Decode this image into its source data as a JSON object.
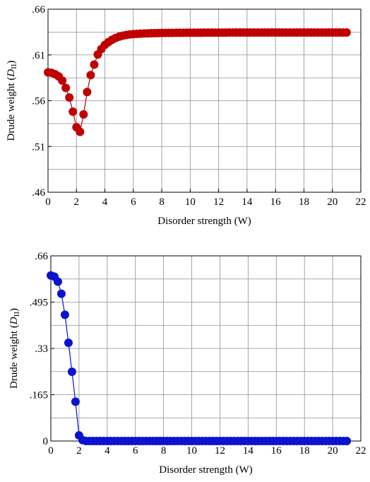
{
  "chart_data": [
    {
      "type": "line",
      "xlabel": "Disorder strength (W)",
      "ylabel_main": "Drude weight (",
      "ylabel_var": "D",
      "ylabel_sub": "II",
      "ylabel_end": ")",
      "xlim": [
        0,
        22
      ],
      "ylim": [
        0.46,
        0.66
      ],
      "xticks": [
        0,
        2,
        4,
        6,
        8,
        10,
        12,
        14,
        16,
        18,
        20,
        22
      ],
      "xtick_labels": [
        "0",
        "2",
        "4",
        "6",
        "8",
        "10",
        "12",
        "14",
        "16",
        "18",
        "20",
        "22"
      ],
      "yticks": [
        0.46,
        0.51,
        0.56,
        0.61,
        0.66
      ],
      "ytick_labels": [
        ".46",
        ".51",
        ".56",
        ".61",
        ".66"
      ],
      "grid": true,
      "color": "#c00000",
      "series": [
        {
          "x": [
            0,
            0.25,
            0.5,
            0.75,
            1,
            1.25,
            1.5,
            1.75,
            2,
            2.25,
            2.5,
            2.75,
            3,
            3.25,
            3.5,
            3.75,
            4,
            4.25,
            4.5,
            4.75,
            5,
            5.25,
            5.5,
            5.75,
            6,
            6.25,
            6.5,
            6.75,
            7,
            7.25,
            7.5,
            7.75,
            8,
            8.25,
            8.5,
            8.75,
            9,
            9.25,
            9.5,
            9.75,
            10,
            10.25,
            10.5,
            10.75,
            11,
            11.25,
            11.5,
            11.75,
            12,
            12.25,
            12.5,
            12.75,
            13,
            13.25,
            13.5,
            13.75,
            14,
            14.25,
            14.5,
            14.75,
            15,
            15.25,
            15.5,
            15.75,
            16,
            16.25,
            16.5,
            16.75,
            17,
            17.25,
            17.5,
            17.75,
            18,
            18.25,
            18.5,
            18.75,
            19,
            19.25,
            19.5,
            19.75,
            20,
            20.25,
            20.5,
            20.75,
            21
          ],
          "y": [
            0.591,
            0.5905,
            0.589,
            0.5865,
            0.582,
            0.574,
            0.5635,
            0.548,
            0.531,
            0.526,
            0.545,
            0.5695,
            0.588,
            0.5995,
            0.6105,
            0.6165,
            0.621,
            0.624,
            0.6265,
            0.6285,
            0.63,
            0.631,
            0.6318,
            0.6324,
            0.6328,
            0.6331,
            0.6333,
            0.6335,
            0.6336,
            0.6337,
            0.6338,
            0.6339,
            0.634,
            0.634,
            0.6341,
            0.6341,
            0.6342,
            0.6342,
            0.6342,
            0.6343,
            0.6343,
            0.6343,
            0.6343,
            0.6343,
            0.6344,
            0.6344,
            0.6344,
            0.6344,
            0.6344,
            0.6344,
            0.6344,
            0.6345,
            0.6345,
            0.6345,
            0.6345,
            0.6345,
            0.6345,
            0.6345,
            0.6345,
            0.6345,
            0.6345,
            0.6345,
            0.6345,
            0.6345,
            0.6345,
            0.6345,
            0.6345,
            0.6345,
            0.6345,
            0.6345,
            0.6345,
            0.6345,
            0.6345,
            0.6345,
            0.6345,
            0.6345,
            0.6345,
            0.6345,
            0.6345,
            0.6345,
            0.6345,
            0.6345,
            0.6345,
            0.6345,
            0.6345
          ]
        }
      ]
    },
    {
      "type": "line",
      "xlabel": "Disorder strength (W)",
      "ylabel_main": "Drude weight (",
      "ylabel_var": "D",
      "ylabel_sub": "II",
      "ylabel_end": ")",
      "xlim": [
        0,
        22
      ],
      "ylim": [
        0,
        0.66
      ],
      "xticks": [
        0,
        2,
        4,
        6,
        8,
        10,
        12,
        14,
        16,
        18,
        20,
        22
      ],
      "xtick_labels": [
        "0",
        "2",
        "4",
        "6",
        "8",
        "10",
        "12",
        "14",
        "16",
        "18",
        "20",
        "22"
      ],
      "yticks": [
        0,
        0.165,
        0.33,
        0.495,
        0.66
      ],
      "ytick_labels": [
        "0",
        ".165",
        ".33",
        ".495",
        ".66"
      ],
      "grid": true,
      "color": "#0a14d0",
      "series": [
        {
          "x": [
            0,
            0.25,
            0.5,
            0.75,
            1,
            1.25,
            1.5,
            1.75,
            2,
            2.25,
            2.5,
            2.75,
            3,
            3.25,
            3.5,
            3.75,
            4,
            4.25,
            4.5,
            4.75,
            5,
            5.25,
            5.5,
            5.75,
            6,
            6.25,
            6.5,
            6.75,
            7,
            7.25,
            7.5,
            7.75,
            8,
            8.25,
            8.5,
            8.75,
            9,
            9.25,
            9.5,
            9.75,
            10,
            10.25,
            10.5,
            10.75,
            11,
            11.25,
            11.5,
            11.75,
            12,
            12.25,
            12.5,
            12.75,
            13,
            13.25,
            13.5,
            13.75,
            14,
            14.25,
            14.5,
            14.75,
            15,
            15.25,
            15.5,
            15.75,
            16,
            16.25,
            16.5,
            16.75,
            17,
            17.25,
            17.5,
            17.75,
            18,
            18.25,
            18.5,
            18.75,
            19,
            19.25,
            19.5,
            19.75,
            20,
            20.25,
            20.5,
            20.75,
            21
          ],
          "y": [
            0.59,
            0.586,
            0.568,
            0.525,
            0.45,
            0.35,
            0.247,
            0.14,
            0.02,
            0.003,
            0,
            0,
            0,
            0,
            0,
            0,
            0,
            0,
            0,
            0,
            0,
            0,
            0,
            0,
            0,
            0,
            0,
            0,
            0,
            0,
            0,
            0,
            0,
            0,
            0,
            0,
            0,
            0,
            0,
            0,
            0,
            0,
            0,
            0,
            0,
            0,
            0,
            0,
            0,
            0,
            0,
            0,
            0,
            0,
            0,
            0,
            0,
            0,
            0,
            0,
            0,
            0,
            0,
            0,
            0,
            0,
            0,
            0,
            0,
            0,
            0,
            0,
            0,
            0,
            0,
            0,
            0,
            0,
            0,
            0,
            0,
            0,
            0,
            0,
            0
          ]
        }
      ]
    }
  ]
}
